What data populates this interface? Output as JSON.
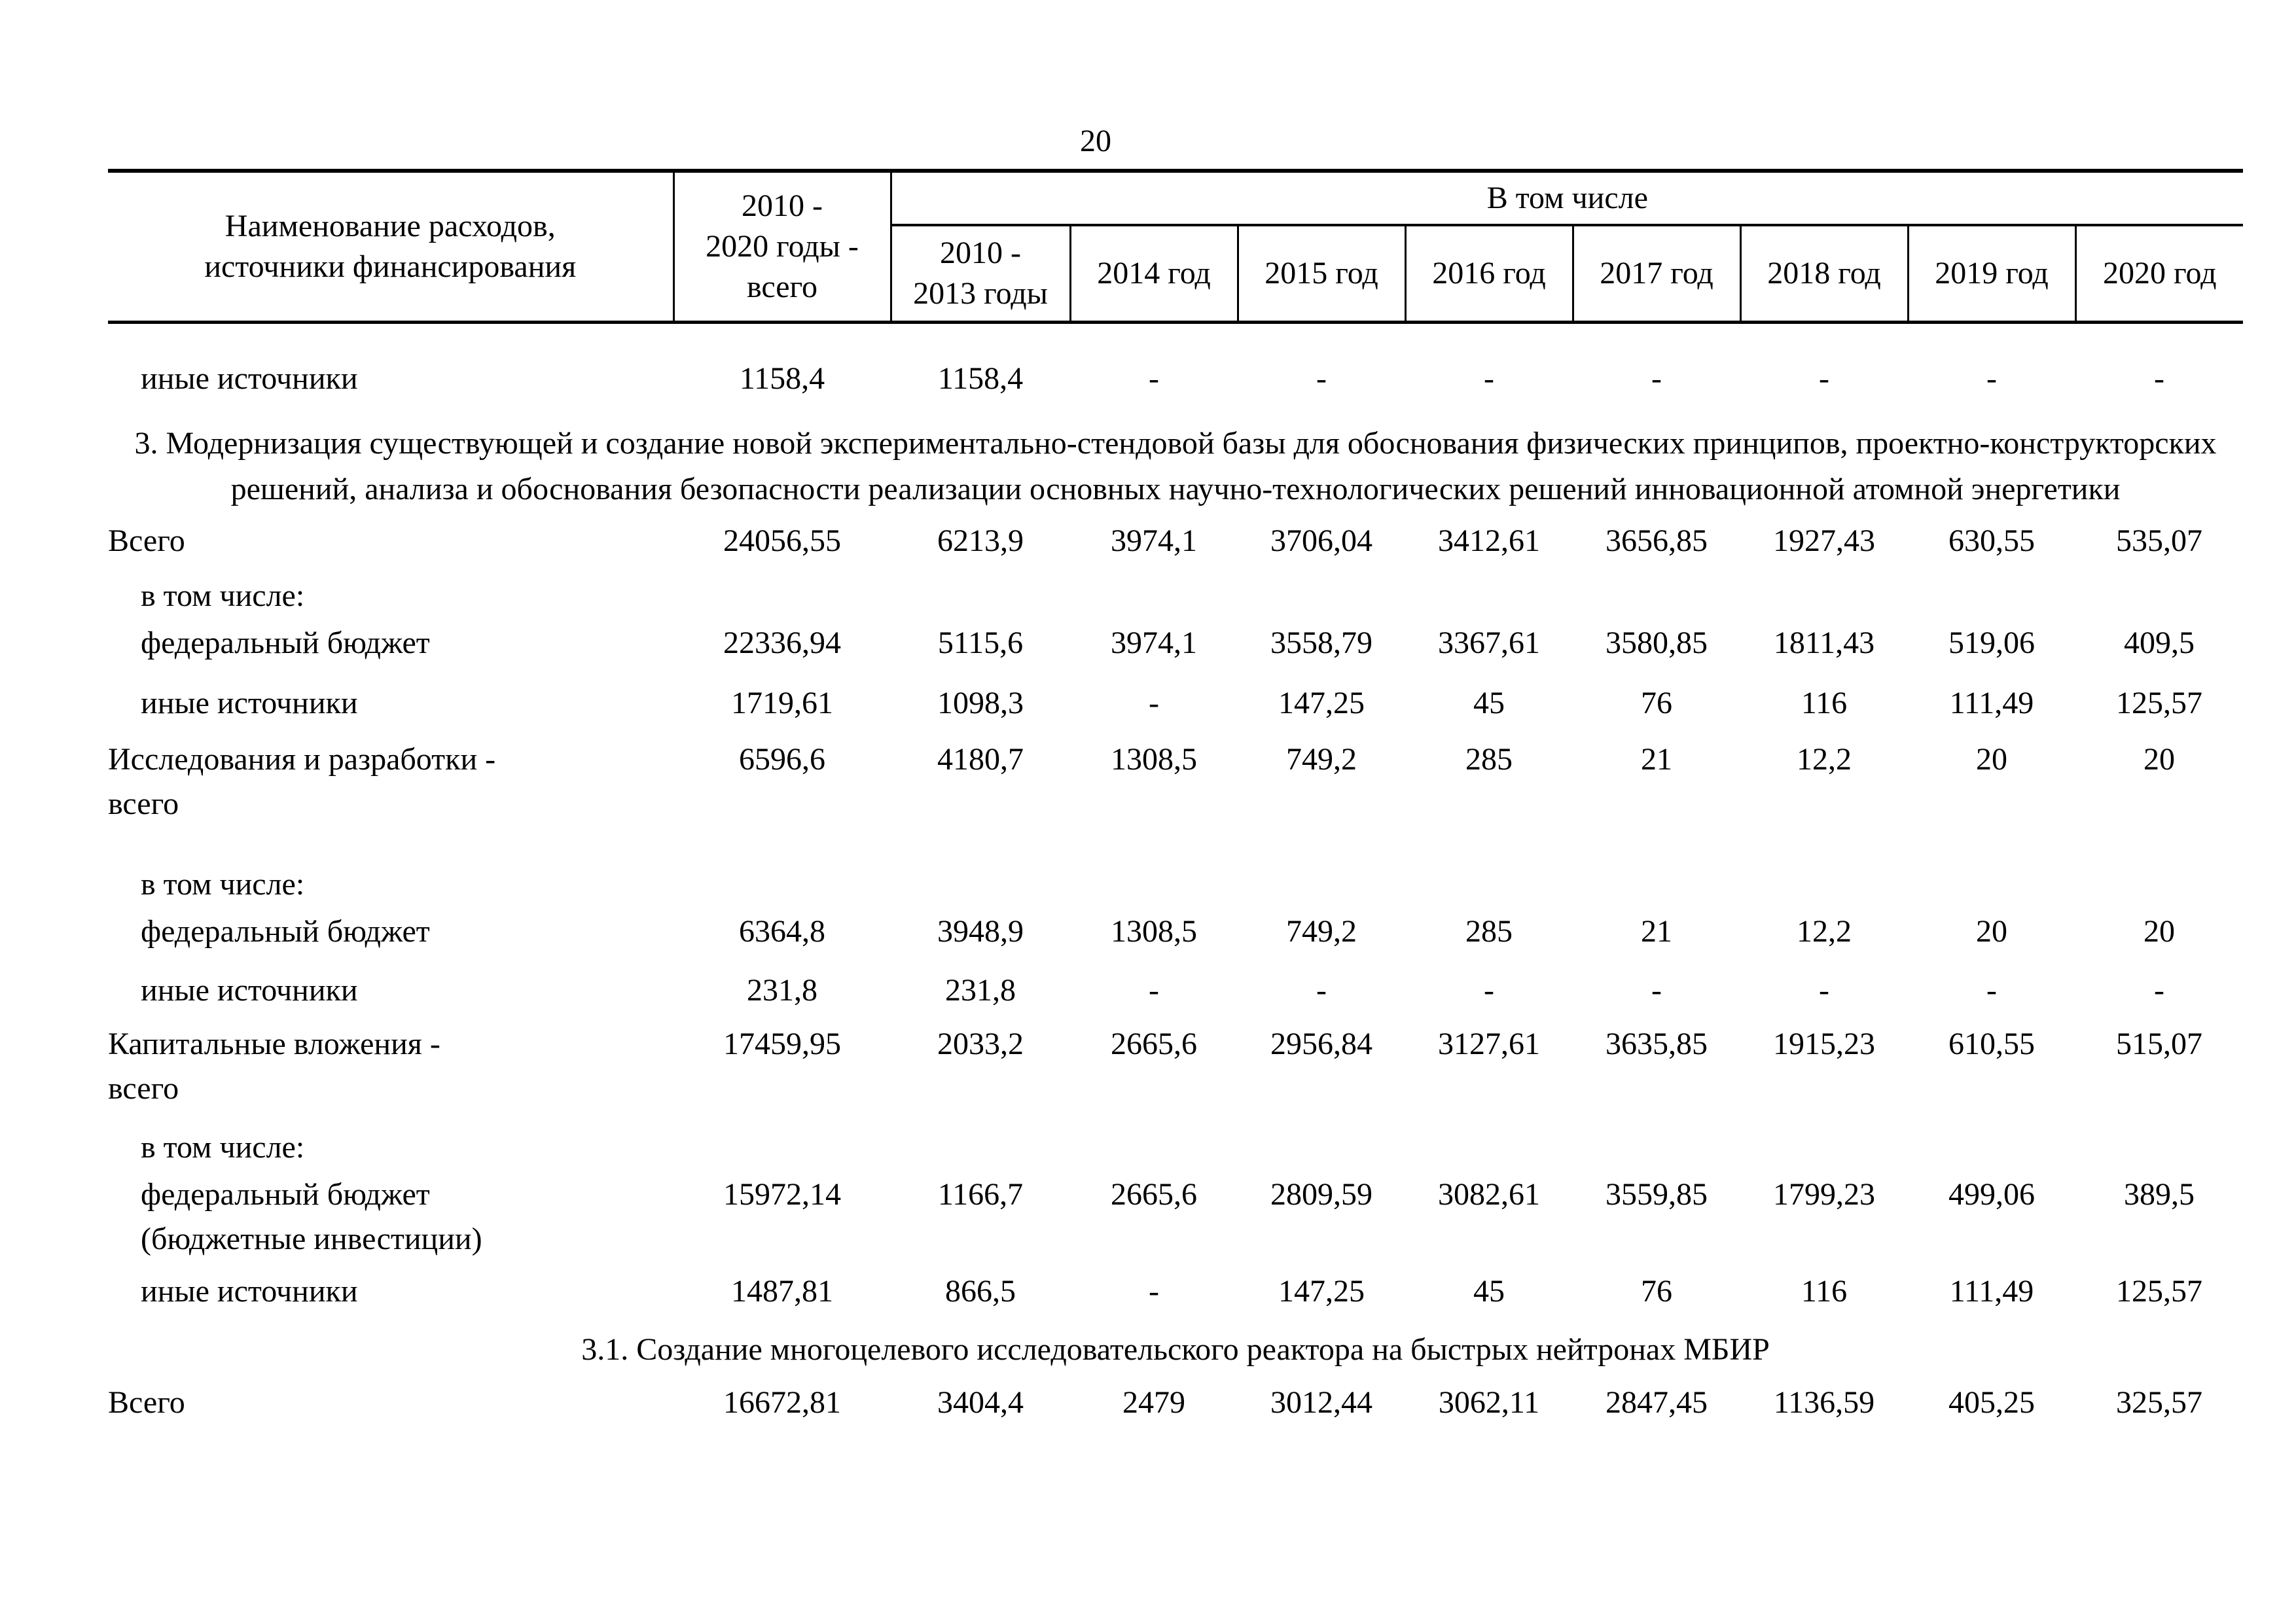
{
  "page": {
    "number": "20"
  },
  "table": {
    "header": {
      "col_label": "Наименование расходов,\nисточники финансирования",
      "col_total": "2010 -\n2020 годы -\nвсего",
      "group_label": "В том числе",
      "year_cols": [
        "2010 -\n2013 годы",
        "2014 год",
        "2015 год",
        "2016 год",
        "2017 год",
        "2018 год",
        "2019 год",
        "2020 год"
      ]
    },
    "rows": [
      {
        "type": "data",
        "indent": true,
        "pad": 50,
        "label": "иные источники",
        "values": [
          "1158,4",
          "1158,4",
          "-",
          "-",
          "-",
          "-",
          "-",
          "-",
          "-"
        ]
      },
      {
        "type": "section",
        "pad": 30,
        "text": "3. Модернизация существующей и создание новой экспериментально-стендовой базы для обоснования физических принципов, проектно-конструкторских решений, анализа и обоснования безопасности реализации основных научно-технологических решений инновационной атомной энергетики"
      },
      {
        "type": "data",
        "indent": false,
        "pad": 10,
        "label": "Всего",
        "values": [
          "24056,55",
          "6213,9",
          "3974,1",
          "3706,04",
          "3412,61",
          "3656,85",
          "1927,43",
          "630,55",
          "535,07"
        ]
      },
      {
        "type": "data",
        "indent": true,
        "pad": 16,
        "label": "в том числе:",
        "values": [
          "",
          "",
          "",
          "",
          "",
          "",
          "",
          "",
          ""
        ]
      },
      {
        "type": "data",
        "indent": true,
        "pad": 4,
        "label": "федеральный бюджет",
        "values": [
          "22336,94",
          "5115,6",
          "3974,1",
          "3558,79",
          "3367,61",
          "3580,85",
          "1811,43",
          "519,06",
          "409,5"
        ]
      },
      {
        "type": "data",
        "indent": true,
        "pad": 24,
        "label": "иные источники",
        "values": [
          "1719,61",
          "1098,3",
          "-",
          "147,25",
          "45",
          "76",
          "116",
          "111,49",
          "125,57"
        ]
      },
      {
        "type": "data",
        "indent": false,
        "pad": 18,
        "label": "Исследования и разработки -\nвсего",
        "values": [
          "6596,6",
          "4180,7",
          "1308,5",
          "749,2",
          "285",
          "21",
          "12,2",
          "20",
          "20"
        ]
      },
      {
        "type": "data",
        "indent": true,
        "pad": 55,
        "label": "в том числе:",
        "values": [
          "",
          "",
          "",
          "",
          "",
          "",
          "",
          "",
          ""
        ]
      },
      {
        "type": "data",
        "indent": true,
        "pad": 4,
        "label": "федеральный бюджет",
        "values": [
          "6364,8",
          "3948,9",
          "1308,5",
          "749,2",
          "285",
          "21",
          "12,2",
          "20",
          "20"
        ]
      },
      {
        "type": "data",
        "indent": true,
        "pad": 22,
        "label": "иные источники",
        "values": [
          "231,8",
          "231,8",
          "-",
          "-",
          "-",
          "-",
          "-",
          "-",
          "-"
        ]
      },
      {
        "type": "data",
        "indent": false,
        "pad": 14,
        "label": "Капитальные вложения -\nвсего",
        "values": [
          "17459,95",
          "2033,2",
          "2665,6",
          "2956,84",
          "3127,61",
          "3635,85",
          "1915,23",
          "610,55",
          "515,07"
        ]
      },
      {
        "type": "data",
        "indent": true,
        "pad": 22,
        "label": "в том числе:",
        "values": [
          "",
          "",
          "",
          "",
          "",
          "",
          "",
          "",
          ""
        ]
      },
      {
        "type": "data",
        "indent": true,
        "pad": 4,
        "label": "федеральный бюджет\n(бюджетные инвестиции)",
        "values": [
          "15972,14",
          "1166,7",
          "2665,6",
          "2809,59",
          "3082,61",
          "3559,85",
          "1799,23",
          "499,06",
          "389,5"
        ]
      },
      {
        "type": "data",
        "indent": true,
        "pad": 12,
        "label": "иные источники",
        "values": [
          "1487,81",
          "866,5",
          "-",
          "147,25",
          "45",
          "76",
          "116",
          "111,49",
          "125,57"
        ]
      },
      {
        "type": "section",
        "pad": 20,
        "text": "3.1. Создание многоцелевого исследовательского реактора на быстрых нейтронах МБИР"
      },
      {
        "type": "data",
        "indent": false,
        "pad": 12,
        "label": "Всего",
        "values": [
          "16672,81",
          "3404,4",
          "2479",
          "3012,44",
          "3062,11",
          "2847,45",
          "1136,59",
          "405,25",
          "325,57"
        ]
      }
    ]
  }
}
